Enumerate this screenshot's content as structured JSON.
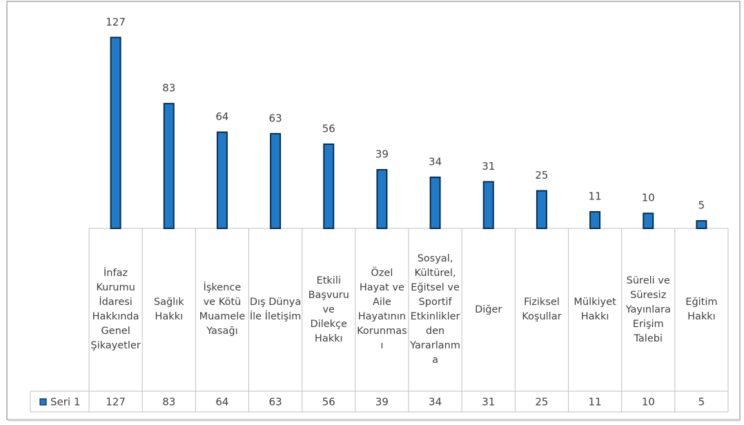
{
  "chart_data": {
    "type": "bar",
    "categories": [
      "İnfaz Kurumu İdaresi Hakkında Genel Şikayetler",
      "Sağlık Hakkı",
      "İşkence ve Kötü Muamele Yasağı",
      "Dış Dünya İle İletişim",
      "Etkili Başvuru ve Dilekçe Hakkı",
      "Özel Hayat ve Aile Hayatının Korunması",
      "Sosyal, Kültürel, Eğitsel ve Sportif Etkinliklerden Yararlanma",
      "Diğer",
      "Fiziksel Koşullar",
      "Mülkiyet Hakkı",
      "Süreli ve Süresiz Yayınlara Erişim Talebi",
      "Eğitim Hakkı"
    ],
    "series": [
      {
        "name": "Seri 1",
        "color": "#1f7ac8",
        "values": [
          127,
          83,
          64,
          63,
          56,
          39,
          34,
          31,
          25,
          11,
          10,
          5
        ]
      }
    ],
    "ylim": [
      0,
      140
    ]
  }
}
